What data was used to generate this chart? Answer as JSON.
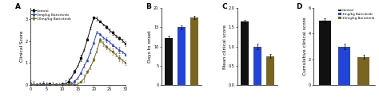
{
  "panel_A": {
    "label": "A",
    "ylabel": "Clinical Score",
    "xlim": [
      0,
      30
    ],
    "ylim": [
      0,
      3.5
    ],
    "xticks": [
      0,
      5,
      10,
      15,
      20,
      25,
      30
    ],
    "yticks": [
      0,
      1,
      2,
      3
    ],
    "control_color": "#111111",
    "low_color": "#2244dd",
    "high_color": "#7a6520",
    "legend_labels": [
      "Control",
      "3mg/kg Baricitinib",
      "10mg/kg Baricitinib"
    ]
  },
  "panel_B": {
    "label": "B",
    "ylabel": "Days to onset",
    "values": [
      12.2,
      15.0,
      17.5
    ],
    "errors": [
      0.5,
      0.5,
      0.4
    ],
    "ylim": [
      0,
      20
    ],
    "yticks": [
      0,
      5,
      10,
      15,
      20
    ],
    "colors": [
      "#111111",
      "#2244dd",
      "#7a6520"
    ]
  },
  "panel_C": {
    "label": "C",
    "ylabel": "Mean clinical score",
    "values": [
      1.65,
      1.0,
      0.75
    ],
    "errors": [
      0.05,
      0.07,
      0.05
    ],
    "ylim": [
      0.0,
      2.0
    ],
    "yticks": [
      0.0,
      0.5,
      1.0,
      1.5,
      2.0
    ],
    "colors": [
      "#111111",
      "#2244dd",
      "#7a6520"
    ]
  },
  "panel_D": {
    "label": "D",
    "ylabel": "Cumulative clinical score",
    "values": [
      5.0,
      3.0,
      2.2
    ],
    "errors": [
      0.2,
      0.2,
      0.15
    ],
    "ylim": [
      0,
      6
    ],
    "yticks": [
      0,
      2,
      4,
      6
    ],
    "colors": [
      "#111111",
      "#2244dd",
      "#7a6520"
    ],
    "legend_labels": [
      "Control",
      "3mg/kg Baricitinib",
      "10mg/kg Baricitinib"
    ]
  },
  "background_color": "#ffffff"
}
